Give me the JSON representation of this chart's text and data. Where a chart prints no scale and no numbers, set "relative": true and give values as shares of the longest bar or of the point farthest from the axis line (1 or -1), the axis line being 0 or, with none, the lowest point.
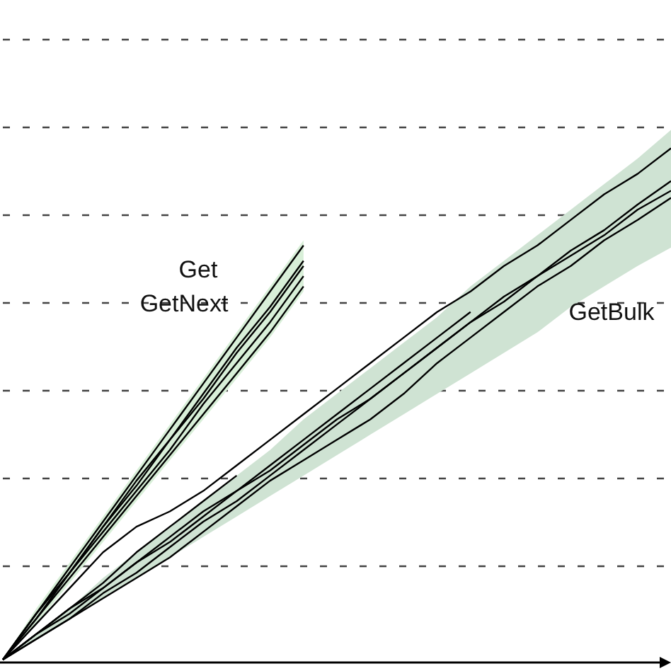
{
  "chart_data": {
    "type": "line",
    "relative": true,
    "grid": "y",
    "line_style": "solid",
    "marker": "none",
    "categories": [
      null,
      null,
      null,
      null,
      null,
      null,
      null,
      null,
      null,
      null,
      null,
      null,
      null,
      null,
      null,
      null,
      null,
      null,
      null,
      null,
      null
    ],
    "annotations": [
      "Get",
      "GetNext",
      "GetBulk"
    ],
    "series": [
      {
        "color": "#000000",
        "values": [
          0,
          0.09,
          0.18,
          0.27,
          0.36,
          0.45,
          0.54,
          0.63,
          0.72,
          0.81,
          null,
          null,
          null,
          null,
          null,
          null,
          null,
          null,
          null,
          null,
          null
        ],
        "lower": [
          0,
          0.07,
          0.15,
          0.23,
          0.31,
          0.39,
          0.47,
          0.55,
          0.63,
          0.72,
          null,
          null,
          null,
          null,
          null,
          null,
          null,
          null,
          null,
          null,
          null
        ],
        "upper": [
          0,
          0.1,
          0.19,
          0.28,
          0.37,
          0.46,
          0.55,
          0.64,
          0.73,
          0.82,
          null,
          null,
          null,
          null,
          null,
          null,
          null,
          null,
          null,
          null,
          null
        ]
      },
      {
        "color": "#000000",
        "values": [
          0,
          0.09,
          0.17,
          0.26,
          0.35,
          0.43,
          0.52,
          0.61,
          0.69,
          0.78,
          null,
          null,
          null,
          null,
          null,
          null,
          null,
          null,
          null,
          null,
          null
        ]
      },
      {
        "color": "#000000",
        "values": [
          0,
          0.08,
          0.17,
          0.25,
          0.33,
          0.41,
          0.5,
          0.58,
          0.66,
          0.75,
          null,
          null,
          null,
          null,
          null,
          null,
          null,
          null,
          null,
          null,
          null
        ]
      },
      {
        "color": "#000000",
        "values": [
          0,
          0.08,
          0.16,
          0.24,
          0.32,
          0.4,
          0.48,
          0.56,
          0.64,
          0.73,
          null,
          null,
          null,
          null,
          null,
          null,
          null,
          null,
          null,
          null,
          null
        ]
      },
      {
        "color": "#000000",
        "values": [
          0,
          0.09,
          0.17,
          0.26,
          0.34,
          0.43,
          0.51,
          0.6,
          0.68,
          0.77,
          null,
          null,
          null,
          null,
          null,
          null,
          null,
          null,
          null,
          null,
          null
        ]
      },
      {
        "color": "#000000",
        "values": [
          0,
          0.07,
          0.14,
          0.21,
          0.26,
          0.29,
          0.33,
          0.38,
          0.43,
          0.48,
          0.53,
          0.58,
          0.63,
          0.68,
          0.72,
          0.77,
          0.81,
          0.86,
          0.91,
          0.95,
          1.0
        ],
        "lower": [
          0,
          0.04,
          0.08,
          0.12,
          0.16,
          0.2,
          0.24,
          0.28,
          0.32,
          0.36,
          0.4,
          0.44,
          0.48,
          0.52,
          0.56,
          0.6,
          0.64,
          0.69,
          0.73,
          0.77,
          0.806
        ],
        "upper": [
          0,
          0.05,
          0.1,
          0.16,
          0.21,
          0.26,
          0.31,
          0.36,
          0.41,
          0.47,
          0.52,
          0.57,
          0.62,
          0.67,
          0.73,
          0.78,
          0.83,
          0.88,
          0.93,
          0.98,
          1.036
        ]
      },
      {
        "color": "#000000",
        "values": [
          0,
          0.05,
          0.1,
          0.14,
          0.19,
          0.24,
          0.29,
          0.33,
          0.38,
          0.43,
          0.48,
          0.53,
          0.58,
          0.63,
          0.68,
          null,
          null,
          null,
          null,
          null,
          null
        ]
      },
      {
        "color": "#000000",
        "values": [
          0,
          0.05,
          0.1,
          0.15,
          0.21,
          0.26,
          0.31,
          0.36,
          null,
          null,
          null,
          null,
          null,
          null,
          null,
          null,
          null,
          null,
          null,
          null,
          null
        ]
      },
      {
        "color": "#000000",
        "values": [
          0,
          0.05,
          0.09,
          0.14,
          0.19,
          0.23,
          0.28,
          0.33,
          0.37,
          0.42,
          0.47,
          0.51,
          0.56,
          0.61,
          0.66,
          0.7,
          0.75,
          0.8,
          0.84,
          0.89,
          0.936
        ]
      },
      {
        "color": "#000000",
        "values": [
          0,
          0.04,
          0.08,
          0.13,
          0.17,
          0.22,
          0.27,
          0.31,
          0.36,
          0.41,
          0.46,
          0.51,
          0.56,
          0.61,
          0.66,
          0.71,
          0.75,
          0.79,
          0.83,
          0.88,
          0.917
        ]
      },
      {
        "color": "#000000",
        "values": [
          0,
          0.04,
          0.08,
          0.12,
          0.16,
          0.2,
          0.25,
          0.3,
          0.35,
          0.39,
          0.43,
          0.47,
          0.52,
          0.58,
          0.63,
          0.68,
          0.73,
          0.77,
          0.82,
          0.86,
          0.903
        ]
      }
    ]
  }
}
